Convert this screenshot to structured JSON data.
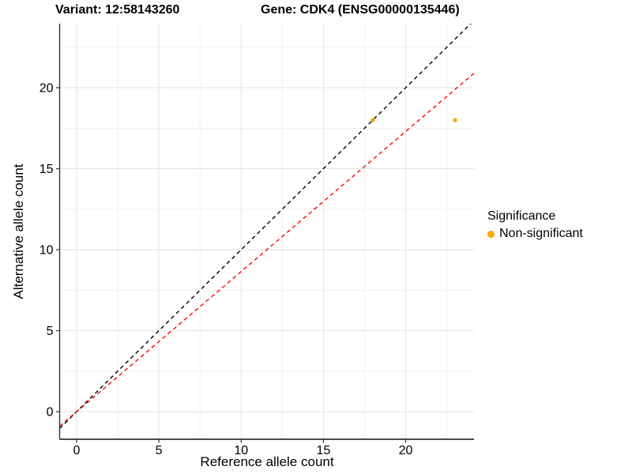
{
  "chart_data": {
    "type": "scatter",
    "titles": {
      "left": "Variant: 12:58143260",
      "right": "Gene: CDK4 (ENSG00000135446)"
    },
    "xlabel": "Reference allele count",
    "ylabel": "Alternative allele count",
    "xlim": [
      -1.03,
      24.15
    ],
    "ylim": [
      -1.7,
      23.95
    ],
    "x_ticks": [
      0,
      5,
      10,
      15,
      20
    ],
    "y_ticks": [
      0,
      5,
      10,
      15,
      20
    ],
    "x_minor": [
      2.5,
      7.5,
      12.5,
      17.5,
      22.5
    ],
    "y_minor": [
      2.5,
      7.5,
      12.5,
      17.5,
      22.5
    ],
    "grid": true,
    "points": [
      {
        "x": 18,
        "y": 18,
        "series": "Non-significant"
      },
      {
        "x": 23,
        "y": 18,
        "series": "Non-significant"
      }
    ],
    "lines": [
      {
        "name": "identity-line",
        "slope": 1.0,
        "intercept": 0,
        "color": "#000000",
        "dash": "dashed"
      },
      {
        "name": "allelic-ratio-line",
        "slope": 0.865,
        "intercept": 0,
        "color": "#ff0000",
        "dash": "dashed"
      }
    ],
    "colors": {
      "point": "#FFA500",
      "grid_major": "#e3e3e3",
      "grid_minor": "#f1f1f1",
      "axis": "#333333"
    },
    "legend": {
      "title": "Significance",
      "position": "right",
      "items": [
        {
          "label": "Non-significant",
          "color": "#FFA500"
        }
      ]
    }
  }
}
